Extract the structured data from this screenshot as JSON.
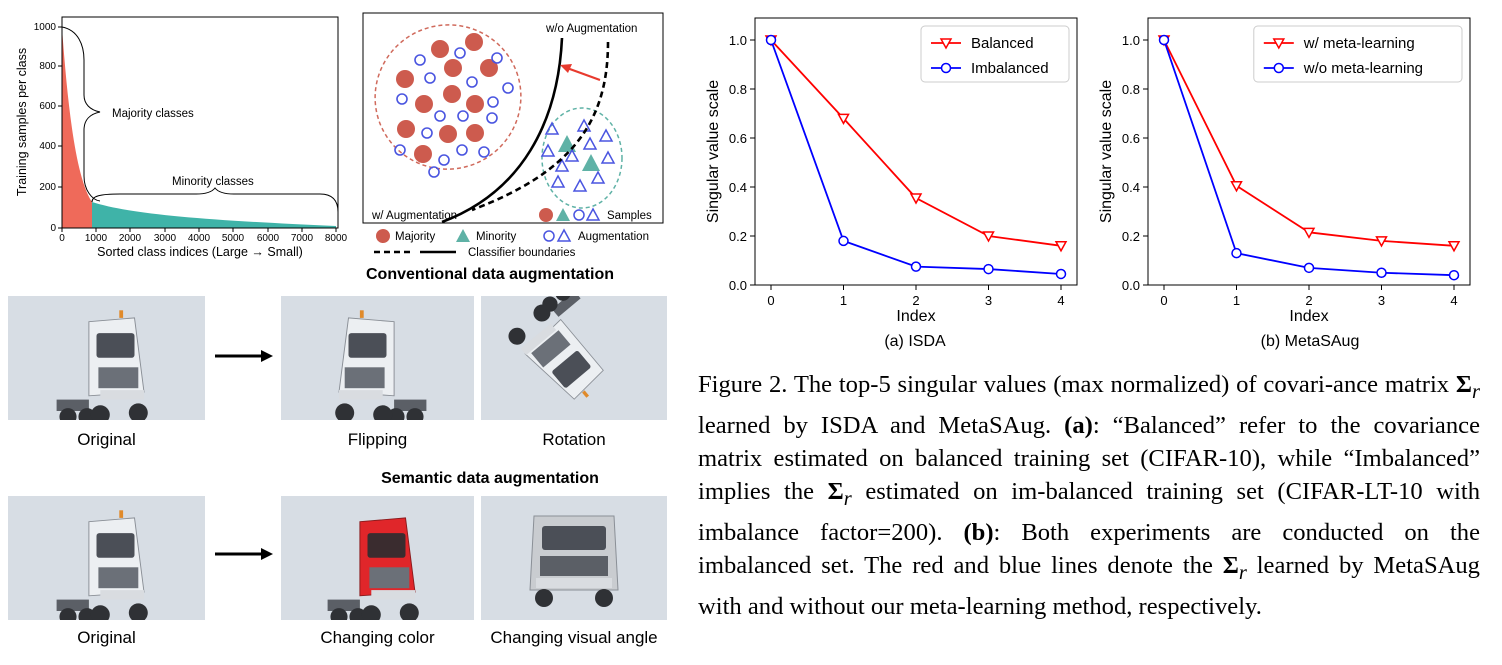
{
  "left_panel": {
    "distribution_chart": {
      "ylabel": "Training samples per class",
      "xlabel": "Sorted class indices (Large → Small)",
      "yticks": [
        "0",
        "200",
        "400",
        "600",
        "800",
        "1000"
      ],
      "xticks": [
        "0",
        "1000",
        "2000",
        "3000",
        "4000",
        "5000",
        "6000",
        "7000",
        "8000"
      ],
      "annotations": {
        "majority": "Majority classes",
        "minority": "Minority classes"
      },
      "colors": {
        "majority": "#ef6a5a",
        "minority": "#3fb3a8"
      }
    },
    "boundary_diagram": {
      "wo_aug": "w/o Augmentation",
      "w_aug": "w/ Augmentation",
      "samples": "Samples",
      "legend": {
        "majority": "Majority",
        "minority": "Minority",
        "augmentation": "Augmentation",
        "boundaries": "Classifier boundaries"
      },
      "colors": {
        "majority": "#cd5b4e",
        "minority": "#5fb2a6",
        "augmentation": "#4a55e0"
      }
    },
    "conventional": {
      "title": "Conventional data augmentation",
      "captions": [
        "Original",
        "Flipping",
        "Rotation"
      ]
    },
    "semantic": {
      "title": "Semantic data augmentation",
      "captions": [
        "Original",
        "Changing color",
        "Changing visual angle"
      ]
    }
  },
  "chart_data": [
    {
      "type": "line",
      "subcaption": "(a) ISDA",
      "xlabel": "Index",
      "ylabel": "Singular value scale",
      "x": [
        0,
        1,
        2,
        3,
        4
      ],
      "ylim": [
        0,
        1.0
      ],
      "yticks": [
        "0.0",
        "0.2",
        "0.4",
        "0.6",
        "0.8",
        "1.0"
      ],
      "legend_position": "top-right",
      "series": [
        {
          "name": "Balanced",
          "values": [
            1.0,
            0.68,
            0.355,
            0.2,
            0.16
          ],
          "color": "#ff0000",
          "marker": "triangle-down"
        },
        {
          "name": "Imbalanced",
          "values": [
            1.0,
            0.18,
            0.075,
            0.065,
            0.045
          ],
          "color": "#0000ff",
          "marker": "circle"
        }
      ]
    },
    {
      "type": "line",
      "subcaption": "(b) MetaSAug",
      "xlabel": "Index",
      "ylabel": "Singular value scale",
      "x": [
        0,
        1,
        2,
        3,
        4
      ],
      "ylim": [
        0,
        1.0
      ],
      "yticks": [
        "0.0",
        "0.2",
        "0.4",
        "0.6",
        "0.8",
        "1.0"
      ],
      "legend_position": "top-right",
      "series": [
        {
          "name": "w/ meta-learning",
          "values": [
            1.0,
            0.405,
            0.215,
            0.18,
            0.16
          ],
          "color": "#ff0000",
          "marker": "triangle-down"
        },
        {
          "name": "w/o meta-learning",
          "values": [
            1.0,
            0.13,
            0.07,
            0.05,
            0.04
          ],
          "color": "#0000ff",
          "marker": "circle"
        }
      ]
    }
  ],
  "caption": {
    "label": "Figure 2.",
    "text1": "The top-5 singular values (max normalized) of covari-ance matrix",
    "sigma": "Σ",
    "sub": "r",
    "text2": "learned by ISDA and MetaSAug.",
    "a_label": "(a)",
    "text3": ": “Balanced” refer to the covariance matrix estimated on balanced training set (CIFAR-10), while “Imbalanced” implies the",
    "text4": "estimated on im-balanced training set (CIFAR-LT-10 with imbalance factor=200).",
    "b_label": "(b)",
    "text5": ": Both experiments are conducted on the imbalanced set. The red and blue lines denote the",
    "text6": "learned by MetaSAug with and without our meta-learning method, respectively."
  }
}
